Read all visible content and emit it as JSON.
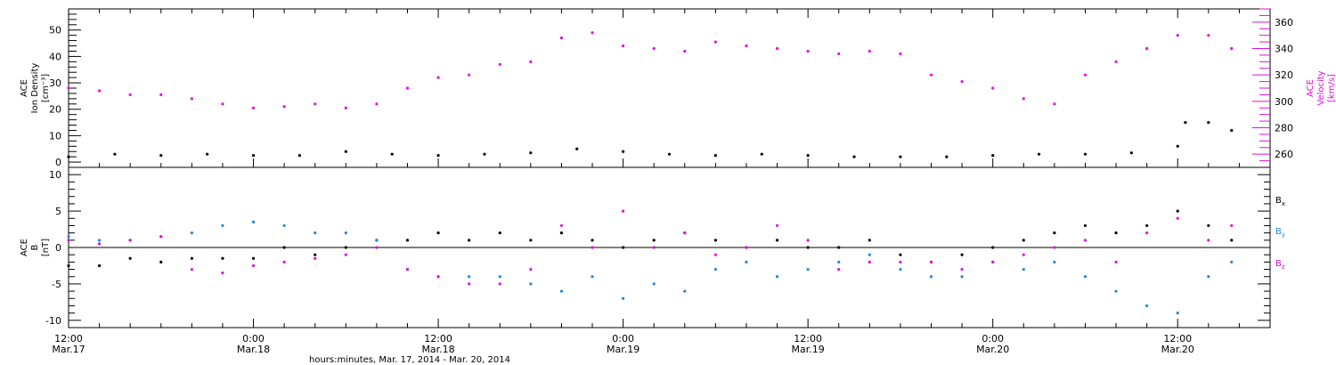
{
  "chart_data": [
    {
      "type": "scatter",
      "panel": "top",
      "ylabel_left": [
        "ACE",
        "Ion Density",
        "[cm⁻³]"
      ],
      "ylabel_right": [
        "ACE",
        "Velocity",
        "[km/s]"
      ],
      "ylim_left": [
        -2,
        58
      ],
      "yticks_left": [
        0,
        10,
        20,
        30,
        40,
        50
      ],
      "ylim_right": [
        250,
        370
      ],
      "yticks_right": [
        260,
        280,
        300,
        320,
        340,
        360
      ],
      "x_hours_range": [
        0,
        78
      ],
      "series": [
        {
          "name": "Ion Density",
          "axis": "left",
          "color": "#000000",
          "x": [
            0,
            3,
            6,
            9,
            12,
            15,
            18,
            21,
            24,
            27,
            30,
            33,
            36,
            39,
            42,
            45,
            48,
            51,
            54,
            57,
            60,
            63,
            66,
            69,
            72,
            72.5,
            74,
            75.5
          ],
          "y": [
            2,
            3,
            2.5,
            3,
            2.5,
            2.5,
            4,
            3,
            2.5,
            3,
            3.5,
            5,
            4,
            3,
            2.5,
            3,
            2.5,
            2,
            2,
            2,
            2.5,
            3,
            3,
            3.5,
            6,
            15,
            15,
            12
          ]
        },
        {
          "name": "Velocity",
          "axis": "right",
          "color": "#e20ee0",
          "x": [
            0,
            2,
            4,
            6,
            8,
            10,
            12,
            14,
            16,
            18,
            20,
            22,
            24,
            26,
            28,
            30,
            32,
            34,
            36,
            38,
            40,
            42,
            44,
            46,
            48,
            50,
            52,
            54,
            56,
            58,
            60,
            62,
            64,
            66,
            68,
            70,
            72,
            74,
            75.5
          ],
          "y": [
            310,
            308,
            305,
            305,
            302,
            298,
            295,
            296,
            298,
            295,
            298,
            310,
            318,
            320,
            328,
            330,
            348,
            352,
            342,
            340,
            338,
            345,
            342,
            340,
            338,
            336,
            338,
            336,
            320,
            315,
            310,
            302,
            298,
            320,
            330,
            340,
            350,
            350,
            340
          ]
        }
      ]
    },
    {
      "type": "scatter",
      "panel": "bottom",
      "ylabel": [
        "ACE",
        "B",
        "[nT]"
      ],
      "ylim": [
        -11,
        11
      ],
      "yticks": [
        -10,
        -5,
        0,
        5,
        10
      ],
      "zero_line": true,
      "x_hours_range": [
        0,
        78
      ],
      "series": [
        {
          "name": "Bx",
          "color": "#000000",
          "x": [
            0,
            2,
            4,
            6,
            8,
            10,
            12,
            14,
            16,
            18,
            20,
            22,
            24,
            26,
            28,
            30,
            32,
            34,
            36,
            38,
            40,
            42,
            44,
            46,
            48,
            50,
            52,
            54,
            56,
            58,
            60,
            62,
            64,
            66,
            68,
            70,
            72,
            74,
            75.5
          ],
          "y": [
            -2.5,
            -2.5,
            -1.5,
            -2,
            -1.5,
            -1.5,
            -1.5,
            0,
            -1,
            0,
            1,
            1,
            2,
            1,
            2,
            1,
            2,
            1,
            0,
            1,
            2,
            1,
            0,
            1,
            0,
            0,
            1,
            -1,
            -2,
            -1,
            0,
            1,
            2,
            3,
            2,
            3,
            5,
            3,
            1
          ]
        },
        {
          "name": "By",
          "color": "#1a8ae0",
          "x": [
            0,
            2,
            4,
            6,
            8,
            10,
            12,
            14,
            16,
            18,
            20,
            22,
            24,
            26,
            28,
            30,
            32,
            34,
            36,
            38,
            40,
            42,
            44,
            46,
            48,
            50,
            52,
            54,
            56,
            58,
            60,
            62,
            64,
            66,
            68,
            70,
            72,
            74,
            75.5
          ],
          "y": [
            1.5,
            1,
            1,
            1.5,
            2,
            3,
            3.5,
            3,
            2,
            2,
            1,
            -3,
            -4,
            -4,
            -4,
            -5,
            -6,
            -4,
            -7,
            -5,
            -6,
            -3,
            -2,
            -4,
            -3,
            -2,
            -1,
            -3,
            -4,
            -4,
            -2,
            -3,
            -2,
            -4,
            -6,
            -8,
            -9,
            -4,
            -2
          ]
        },
        {
          "name": "Bz",
          "color": "#e20ee0",
          "x": [
            0,
            2,
            4,
            6,
            8,
            10,
            12,
            14,
            16,
            18,
            20,
            22,
            24,
            26,
            28,
            30,
            32,
            34,
            36,
            38,
            40,
            42,
            44,
            46,
            48,
            50,
            52,
            54,
            56,
            58,
            60,
            62,
            64,
            66,
            68,
            70,
            72,
            74,
            75.5
          ],
          "y": [
            1,
            0.5,
            1,
            1.5,
            -3,
            -3.5,
            -2.5,
            -2,
            -1.5,
            -1,
            0,
            -3,
            -4,
            -5,
            -5,
            -3,
            3,
            0,
            5,
            0,
            2,
            -1,
            0,
            3,
            1,
            -3,
            -2,
            -2,
            -2,
            -3,
            -2,
            -1,
            0,
            1,
            -2,
            2,
            4,
            1,
            3
          ]
        }
      ]
    }
  ],
  "x_axis": {
    "tick_labels": [
      {
        "hour": 0,
        "time": "12:00",
        "date": "Mar.17"
      },
      {
        "hour": 12,
        "time": "0:00",
        "date": "Mar.18"
      },
      {
        "hour": 24,
        "time": "12:00",
        "date": "Mar.18"
      },
      {
        "hour": 36,
        "time": "0:00",
        "date": "Mar.19"
      },
      {
        "hour": 48,
        "time": "12:00",
        "date": "Mar.19"
      },
      {
        "hour": 60,
        "time": "0:00",
        "date": "Mar.20"
      },
      {
        "hour": 72,
        "time": "12:00",
        "date": "Mar.20"
      }
    ],
    "title": "hours:minutes, Mar. 17, 2014 - Mar. 20, 2014"
  },
  "legend_bottom": {
    "items": [
      {
        "label": "B",
        "sub": "x",
        "color": "#000000"
      },
      {
        "label": "B",
        "sub": "y",
        "color": "#1a8ae0"
      },
      {
        "label": "B",
        "sub": "z",
        "color": "#e20ee0"
      }
    ]
  },
  "colors": {
    "velocity": "#e20ee0",
    "density": "#000000",
    "bx": "#000000",
    "by": "#1a8ae0",
    "bz": "#e20ee0"
  }
}
